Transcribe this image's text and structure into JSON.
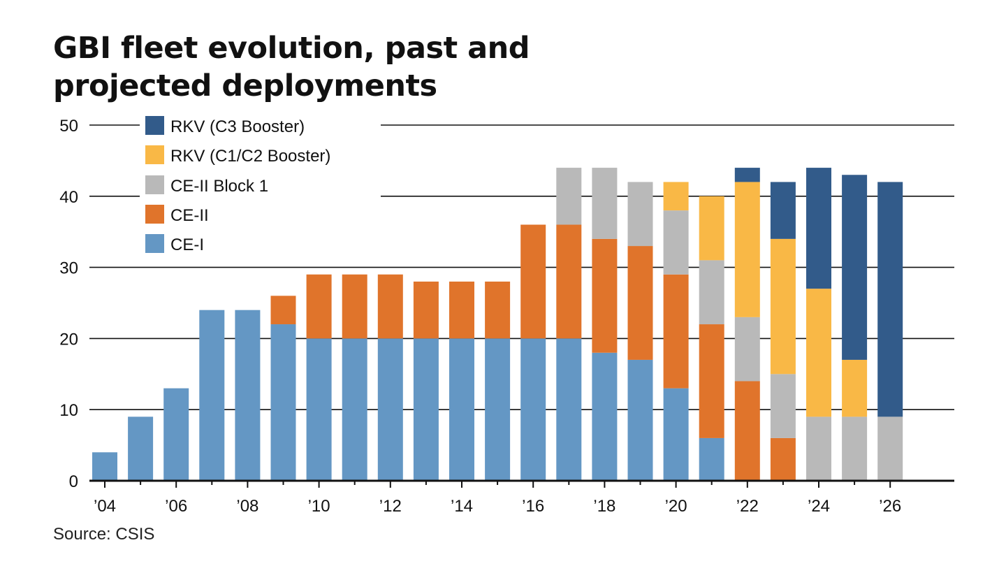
{
  "title": "GBI fleet evolution, past and projected deployments",
  "source": "Source: CSIS",
  "colors": {
    "CE-I": "#6497c4",
    "CE-II": "#e0742b",
    "CE-II Block 1": "#b9b9b9",
    "RKV (C1/C2 Booster)": "#f9b846",
    "RKV (C3 Booster)": "#325b8a"
  },
  "chart_data": {
    "type": "bar",
    "stacked": true,
    "categories": [
      "2004",
      "2005",
      "2006",
      "2007",
      "2008",
      "2009",
      "2010",
      "2011",
      "2012",
      "2013",
      "2014",
      "2015",
      "2016",
      "2017",
      "2018",
      "2019",
      "2020",
      "2021",
      "2022",
      "2023",
      "2024",
      "2025",
      "2026"
    ],
    "x_tick_labels": [
      "’04",
      "’06",
      "’08",
      "’10",
      "’12",
      "’14",
      "’16",
      "’18",
      "’20",
      "’22",
      "’24",
      "’26"
    ],
    "ylim": [
      0,
      50
    ],
    "y_ticks": [
      0,
      10,
      20,
      30,
      40,
      50
    ],
    "grid": true,
    "legend_position": "top-left",
    "legend_order": [
      "RKV (C3 Booster)",
      "RKV (C1/C2 Booster)",
      "CE-II Block 1",
      "CE-II",
      "CE-I"
    ],
    "series": [
      {
        "name": "CE-I",
        "values": [
          4,
          9,
          13,
          24,
          24,
          22,
          20,
          20,
          20,
          20,
          20,
          20,
          20,
          20,
          18,
          17,
          13,
          6,
          0,
          0,
          0,
          0,
          0
        ]
      },
      {
        "name": "CE-II",
        "values": [
          0,
          0,
          0,
          0,
          0,
          4,
          9,
          9,
          9,
          8,
          8,
          8,
          16,
          16,
          16,
          16,
          16,
          16,
          14,
          6,
          0,
          0,
          0
        ]
      },
      {
        "name": "CE-II Block 1",
        "values": [
          0,
          0,
          0,
          0,
          0,
          0,
          0,
          0,
          0,
          0,
          0,
          0,
          0,
          8,
          10,
          9,
          9,
          9,
          9,
          9,
          9,
          9,
          9
        ]
      },
      {
        "name": "RKV (C1/C2 Booster)",
        "values": [
          0,
          0,
          0,
          0,
          0,
          0,
          0,
          0,
          0,
          0,
          0,
          0,
          0,
          0,
          0,
          0,
          4,
          9,
          19,
          19,
          18,
          8,
          0
        ]
      },
      {
        "name": "RKV (C3 Booster)",
        "values": [
          0,
          0,
          0,
          0,
          0,
          0,
          0,
          0,
          0,
          0,
          0,
          0,
          0,
          0,
          0,
          0,
          0,
          0,
          2,
          8,
          17,
          26,
          33
        ]
      }
    ]
  }
}
